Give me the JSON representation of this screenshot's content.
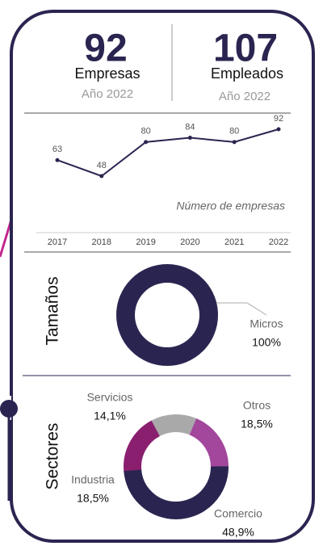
{
  "stats": [
    {
      "value": "92",
      "label": "Empresas",
      "year": "Año 2022"
    },
    {
      "value": "107",
      "label": "Empleados",
      "year": "Año 2022"
    }
  ],
  "chart_data": [
    {
      "type": "line",
      "annotation": "Número de empresas",
      "categories": [
        "2017",
        "2018",
        "2019",
        "2020",
        "2021",
        "2022"
      ],
      "values": [
        63,
        48,
        80,
        84,
        80,
        92
      ],
      "color": "#2a2550"
    },
    {
      "type": "donut",
      "title": "Tamaños",
      "categories": [
        "Micros"
      ],
      "values": [
        100
      ],
      "value_labels": [
        "100%"
      ],
      "colors": [
        "#2a2550"
      ]
    },
    {
      "type": "donut",
      "title": "Sectores",
      "categories": [
        "Servicios",
        "Otros",
        "Comercio",
        "Industria"
      ],
      "values": [
        14.1,
        18.5,
        48.9,
        18.5
      ],
      "value_labels": [
        "14,1%",
        "18,5%",
        "48,9%",
        "18,5%"
      ],
      "colors": [
        "#a9a9a9",
        "#a2479c",
        "#2a2550",
        "#8b1f6f"
      ]
    }
  ]
}
